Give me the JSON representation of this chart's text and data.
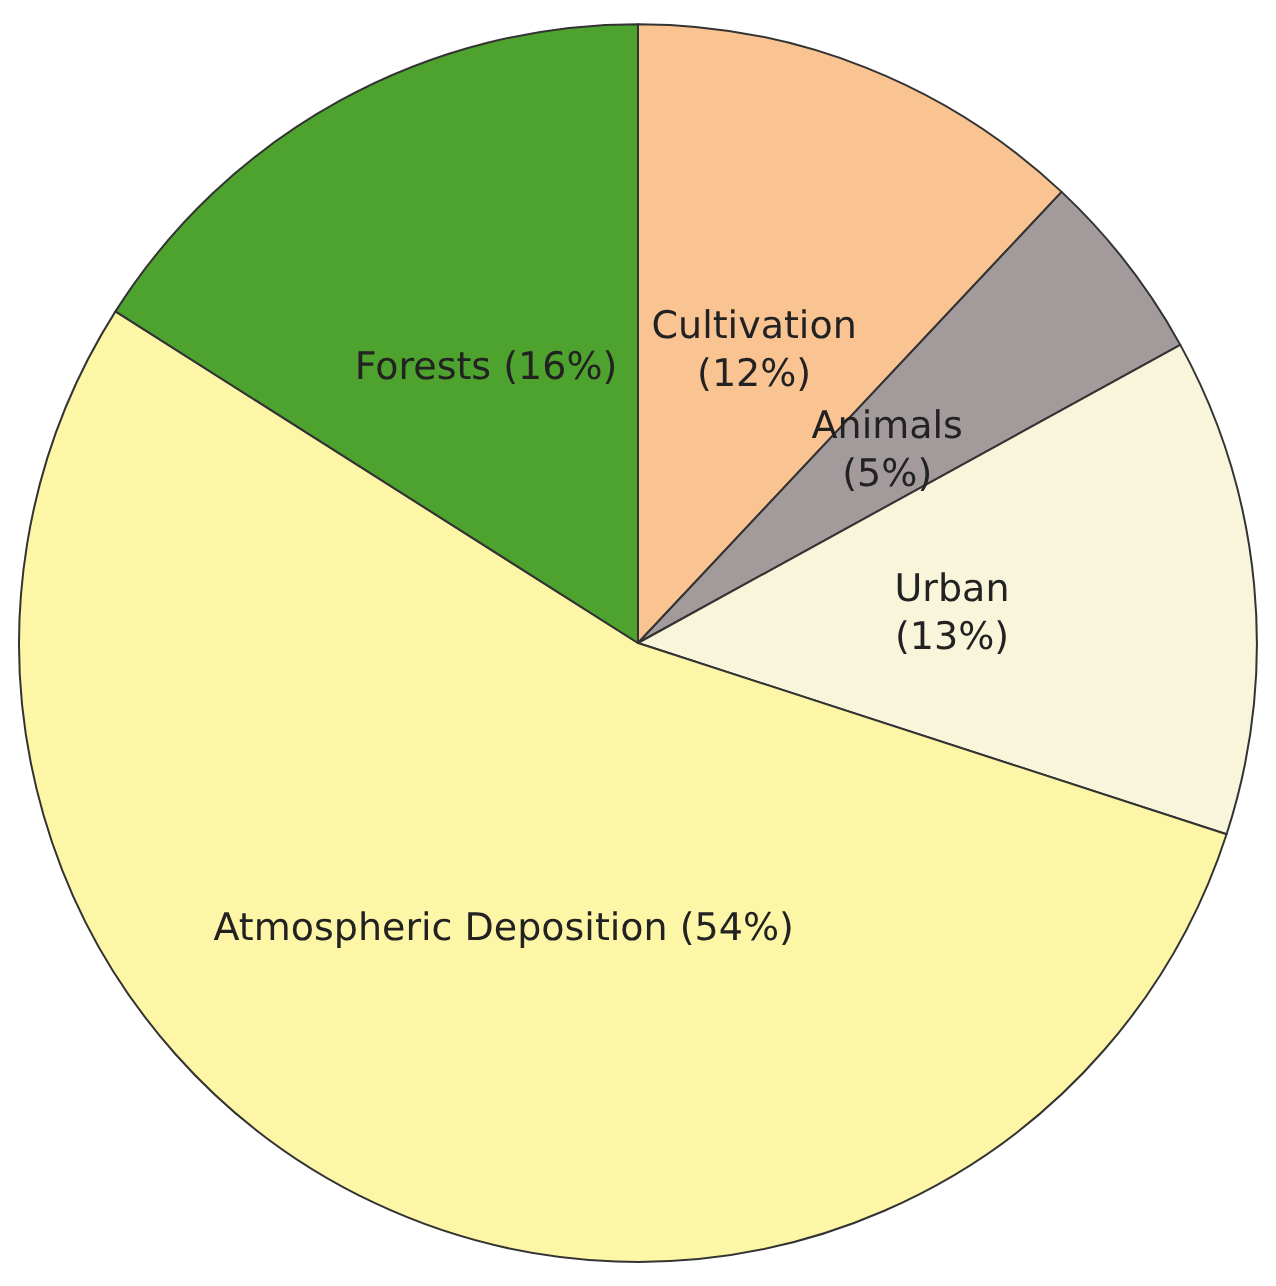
{
  "chart_data": {
    "type": "pie",
    "categories": [
      "Cultivation",
      "Animals",
      "Urban",
      "Atmospheric Deposition",
      "Forests"
    ],
    "values": [
      12,
      5,
      13,
      54,
      16
    ],
    "value_labels": [
      "(12%)",
      "(5%)",
      "(13%)",
      "(54%)",
      "(16%)"
    ],
    "colors": [
      "#f9c392",
      "#a39a9b",
      "#f8f5da",
      "#fcf6a6",
      "#4da32e"
    ]
  }
}
